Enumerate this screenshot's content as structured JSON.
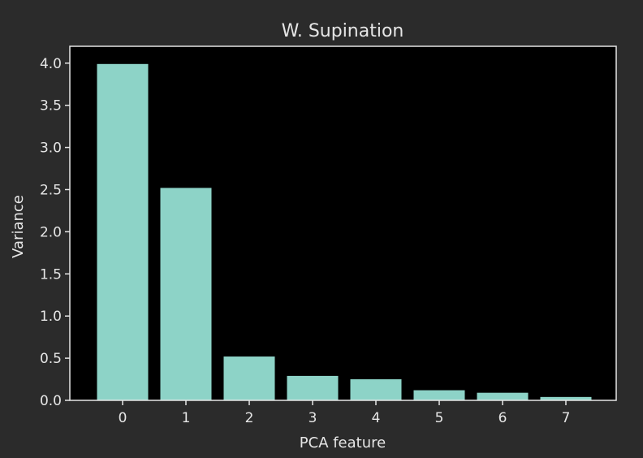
{
  "colors": {
    "figure_background": "#2b2b2b",
    "axes_background": "#000000",
    "bar_fill": "#8dd3c7",
    "axes_edge": "#e6e6e6",
    "text": "#e6e6e6"
  },
  "chart_data": {
    "type": "bar",
    "title": "W. Supination",
    "xlabel": "PCA feature",
    "ylabel": "Variance",
    "categories": [
      "0",
      "1",
      "2",
      "3",
      "4",
      "5",
      "6",
      "7"
    ],
    "values": [
      3.99,
      2.52,
      0.52,
      0.29,
      0.25,
      0.12,
      0.09,
      0.04
    ],
    "ylim": [
      0,
      4.2
    ],
    "yticks": [
      "0.0",
      "0.5",
      "1.0",
      "1.5",
      "2.0",
      "2.5",
      "3.0",
      "3.5",
      "4.0"
    ],
    "grid": false,
    "legend": "none"
  }
}
